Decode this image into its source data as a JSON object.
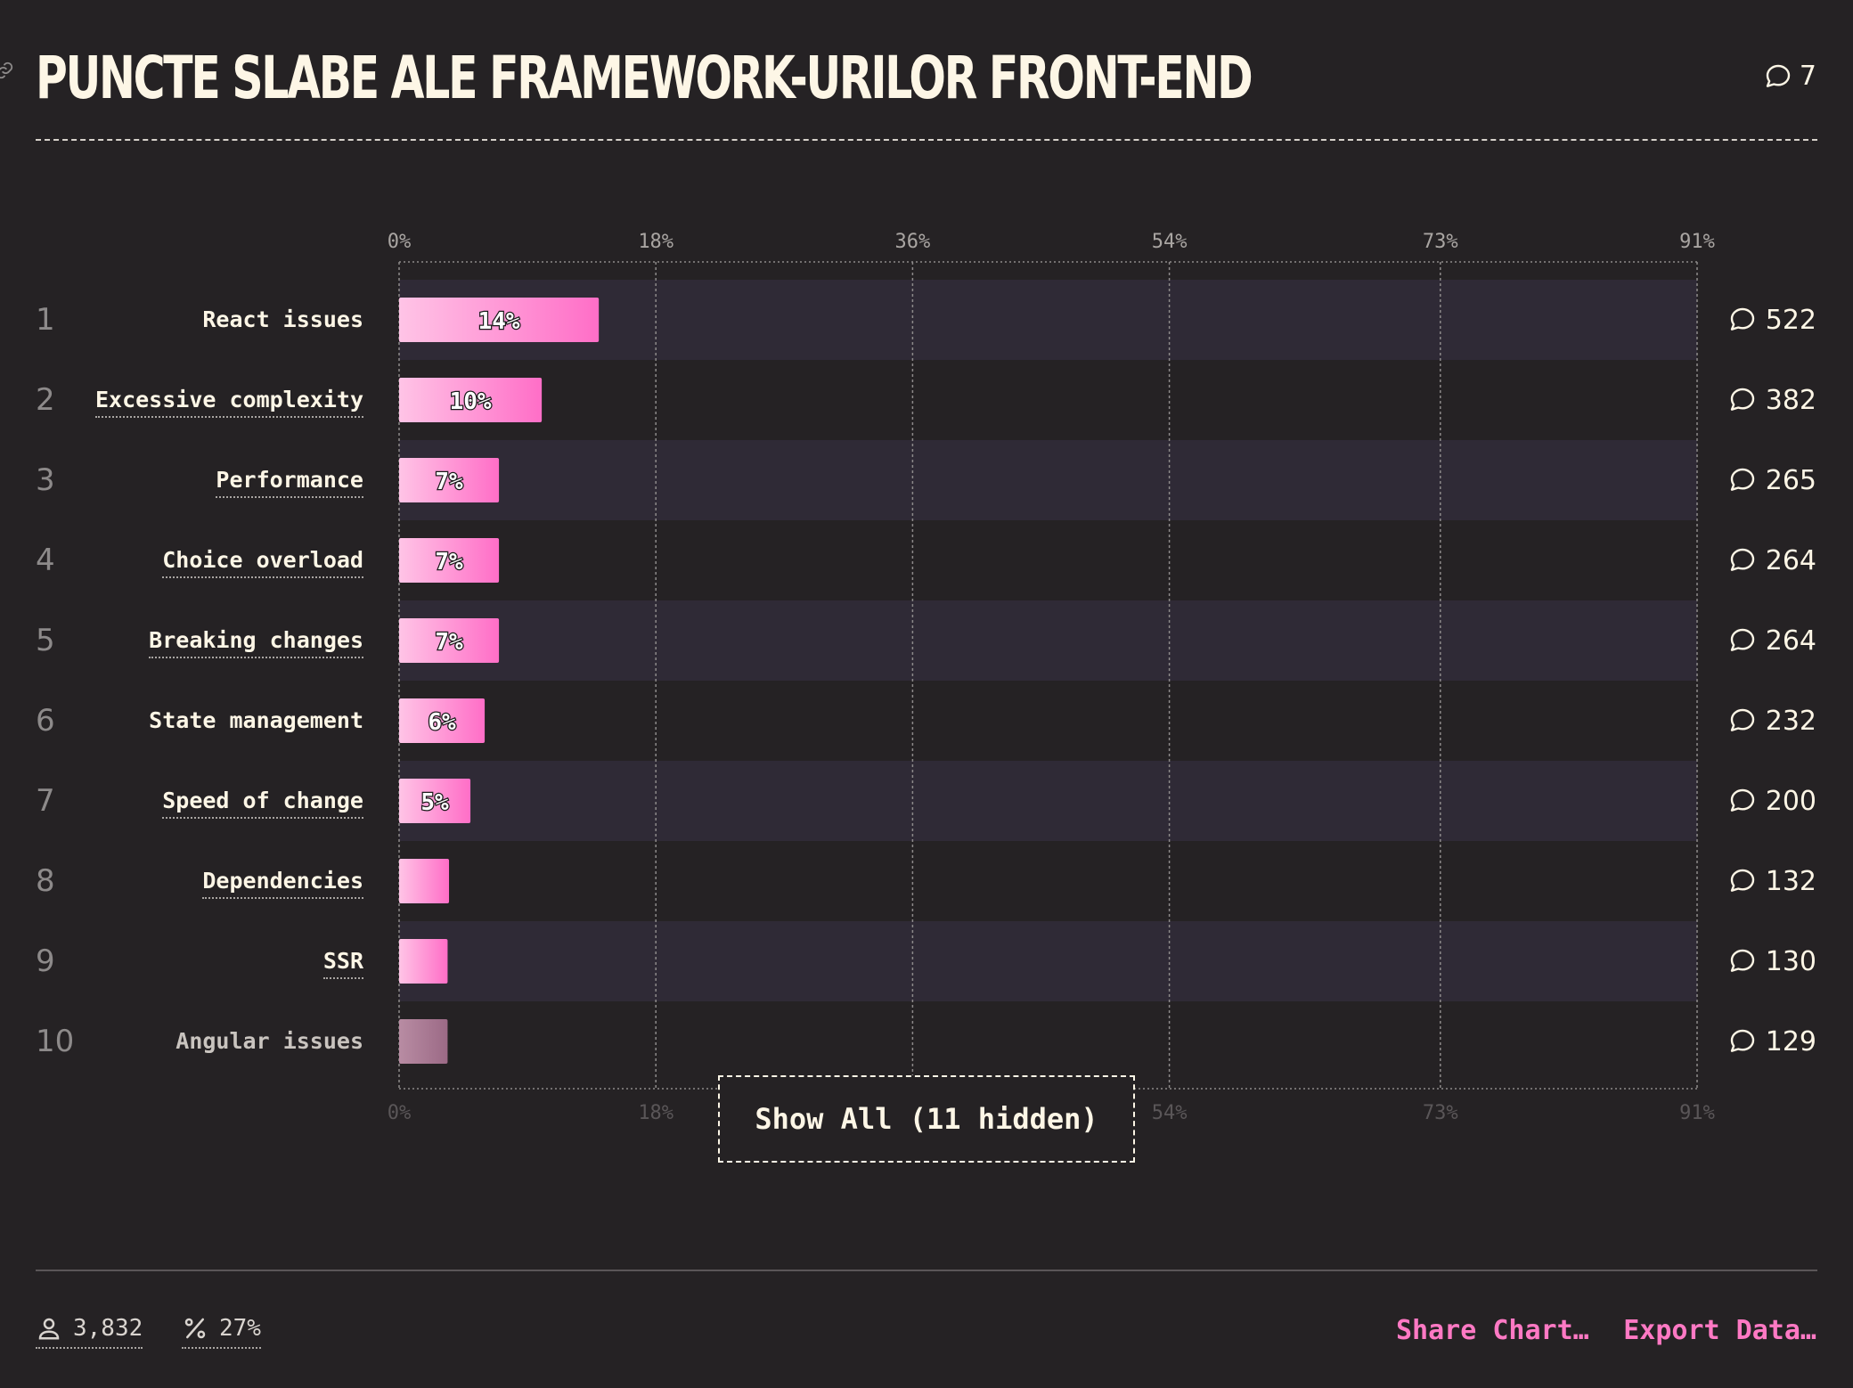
{
  "title": "PUNCTE SLABE ALE FRAMEWORK-URILOR FRONT-END",
  "title_comments": "7",
  "colors": {
    "background": "#252224",
    "row_band": "#2f2a36",
    "bar_start": "#ffc4e6",
    "bar_end": "#ff6ec7",
    "bar_dim_start": "#b88ca3",
    "bar_dim_end": "#9c6a86",
    "accent": "#ff79c4",
    "text": "#fdf6e6"
  },
  "icons": {
    "link": "link-icon",
    "comment": "comment-icon",
    "user": "user-icon",
    "percent": "percent-icon"
  },
  "chart_data": {
    "type": "bar",
    "orientation": "horizontal",
    "ranks": [
      "1",
      "2",
      "3",
      "4",
      "5",
      "6",
      "7",
      "8",
      "9",
      "10"
    ],
    "categories": [
      "React issues",
      "Excessive complexity",
      "Performance",
      "Choice overload",
      "Breaking changes",
      "State management",
      "Speed of change",
      "Dependencies",
      "SSR",
      "Angular issues"
    ],
    "values": [
      14,
      10,
      7,
      7,
      7,
      6,
      5,
      3.5,
      3.4,
      3.4
    ],
    "value_labels": [
      "14%",
      "10%",
      "7%",
      "7%",
      "7%",
      "6%",
      "5%",
      "",
      "",
      ""
    ],
    "comments": [
      "522",
      "382",
      "265",
      "264",
      "264",
      "232",
      "200",
      "132",
      "130",
      "129"
    ],
    "dotted_underline": [
      false,
      true,
      true,
      true,
      true,
      false,
      true,
      true,
      true,
      false
    ],
    "xlim": [
      0,
      91
    ],
    "xticks": [
      0,
      18,
      36,
      54,
      73,
      91
    ],
    "xtick_labels": [
      "0%",
      "18%",
      "36%",
      "54%",
      "73%",
      "91%"
    ],
    "grid": true
  },
  "show_all_label": "Show All (11 hidden)",
  "footer": {
    "respondents": "3,832",
    "percent": "27%",
    "share_label": "Share Chart…",
    "export_label": "Export Data…"
  }
}
